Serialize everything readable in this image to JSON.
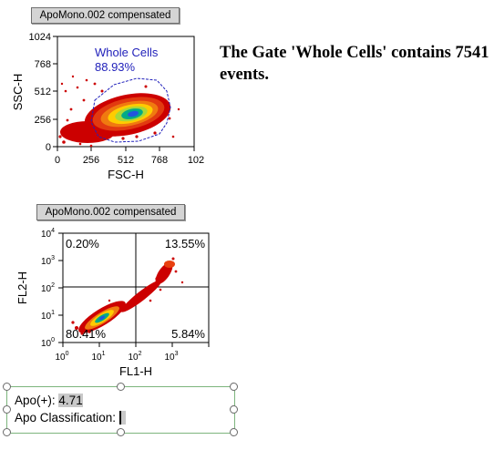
{
  "plot1": {
    "caption": "ApoMono.002 compensated",
    "xlabel": "FSC-H",
    "ylabel": "SSC-H",
    "xticks": [
      "0",
      "256",
      "512",
      "768",
      "102"
    ],
    "yticks": [
      "1024",
      "768",
      "512",
      "256",
      "0"
    ],
    "gate_name": "Whole Cells",
    "gate_percent": "88.93%"
  },
  "plot2": {
    "caption": "ApoMono.002 compensated",
    "xlabel": "FL1-H",
    "ylabel": "FL2-H",
    "xticks": [
      {
        "base": "10",
        "exp": "0"
      },
      {
        "base": "10",
        "exp": "1"
      },
      {
        "base": "10",
        "exp": "2"
      },
      {
        "base": "10",
        "exp": "3"
      }
    ],
    "yticks": [
      {
        "base": "10",
        "exp": "4"
      },
      {
        "base": "10",
        "exp": "3"
      },
      {
        "base": "10",
        "exp": "2"
      },
      {
        "base": "10",
        "exp": "1"
      },
      {
        "base": "10",
        "exp": "0"
      }
    ],
    "q_upper_left": "0.20%",
    "q_upper_right": "13.55%",
    "q_lower_left": "80.41%",
    "q_lower_right": "5.84%"
  },
  "gate_statement": "The Gate 'Whole Cells' contains 7541 events.",
  "stats": {
    "apo_label": "Apo(+):",
    "apo_value": "4.71",
    "class_label": "Apo Classification:"
  },
  "colors": {
    "gate": "#2222bb",
    "density_low": "#cc0000",
    "density_mid": "#ffcc00",
    "density_high": "#00aa88",
    "peak": "#2255dd"
  }
}
